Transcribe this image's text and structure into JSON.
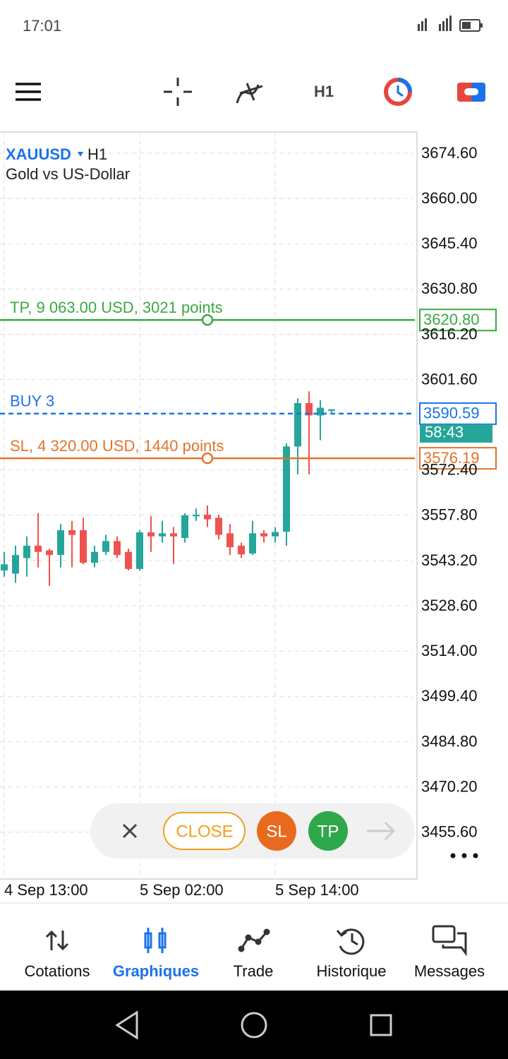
{
  "status_bar": {
    "time": "17:01"
  },
  "toolbar": {
    "timeframe": "H1"
  },
  "chart_data": {
    "type": "candlestick",
    "symbol": "XAUUSD",
    "timeframe": "H1",
    "description": "Gold vs US-Dollar",
    "categories": [
      "4 Sep 13:00",
      null,
      null,
      null,
      null,
      null,
      null,
      null,
      null,
      null,
      null,
      null,
      "5 Sep 02:00",
      null,
      null,
      null,
      null,
      null,
      null,
      null,
      null,
      null,
      null,
      null,
      "5 Sep 14:00",
      null,
      null,
      null,
      null,
      null
    ],
    "open": [
      3540,
      3539,
      3544,
      3548,
      3546.5,
      3545,
      3553,
      3553,
      3542.5,
      3546,
      3549.5,
      3546,
      3540.5,
      3552.3,
      3551,
      3552,
      3550.5,
      3557.5,
      3558,
      3557,
      3552,
      3548,
      3545.5,
      3552,
      3551,
      3552.5,
      3580,
      3594,
      3590,
      3591.5
    ],
    "high": [
      3546,
      3548,
      3551,
      3558.5,
      3547,
      3555,
      3556,
      3557,
      3548,
      3551.5,
      3551,
      3547,
      3553,
      3557.5,
      3556,
      3554,
      3558.5,
      3560,
      3561,
      3558,
      3555,
      3549,
      3556,
      3553,
      3554,
      3581,
      3595.5,
      3597.8,
      3595,
      3592
    ],
    "low": [
      3538,
      3536,
      3538,
      3541,
      3535,
      3541,
      3541,
      3542,
      3541,
      3545,
      3544,
      3540,
      3540,
      3546,
      3549,
      3542,
      3549,
      3556,
      3554,
      3550,
      3545,
      3544,
      3545,
      3549,
      3549,
      3548,
      3571,
      3571,
      3582,
      3591
    ],
    "close": [
      3542,
      3545,
      3548,
      3546,
      3545,
      3553,
      3551.5,
      3542.5,
      3546,
      3549.5,
      3545,
      3540.5,
      3552.3,
      3551,
      3552,
      3551,
      3557.8,
      3558,
      3556.5,
      3551.5,
      3547.5,
      3545.2,
      3552,
      3551,
      3552.4,
      3580,
      3594,
      3590,
      3592.5,
      3592
    ],
    "up_color": "#26a69a",
    "down_color": "#ef5350",
    "ylim": [
      3440.5,
      3681.2
    ],
    "yticks": [
      {
        "value": 3674.6,
        "label": "3674.60"
      },
      {
        "value": 3660,
        "label": "3660.00"
      },
      {
        "value": 3645.4,
        "label": "3645.40"
      },
      {
        "value": 3630.8,
        "label": "3630.80"
      },
      {
        "value": 3616.2,
        "label": "3616.20"
      },
      {
        "value": 3601.6,
        "label": "3601.60"
      },
      {
        "value": 3572.4,
        "label": "3572.40"
      },
      {
        "value": 3557.8,
        "label": "3557.80"
      },
      {
        "value": 3543.2,
        "label": "3543.20"
      },
      {
        "value": 3528.6,
        "label": "3528.60"
      },
      {
        "value": 3514,
        "label": "3514.00"
      },
      {
        "value": 3499.4,
        "label": "3499.40"
      },
      {
        "value": 3484.8,
        "label": "3484.80"
      },
      {
        "value": 3470.2,
        "label": "3470.20"
      },
      {
        "value": 3455.6,
        "label": "3455.60"
      }
    ],
    "grid": true,
    "levels": [
      {
        "label": "TP, 9 063.00 USD, 3021 points",
        "value": 3620.8,
        "value_label": "3620.80",
        "color": "#3aa843",
        "dashed": false
      },
      {
        "label": "BUY 3",
        "value": 3590.59,
        "value_label": "3590.59",
        "color": "#1a73e8",
        "dashed": true
      },
      {
        "label": "SL, 4 320.00 USD, 1440 points",
        "value": 3576.19,
        "value_label": "3576.19",
        "color": "#e0742a",
        "dashed": false
      }
    ],
    "countdown": "58:43"
  },
  "trade_panel": {
    "close": "CLOSE",
    "sl": "SL",
    "tp": "TP"
  },
  "bottom_nav": {
    "items": [
      "Cotations",
      "Graphiques",
      "Trade",
      "Historique",
      "Messages"
    ],
    "active": 1
  }
}
